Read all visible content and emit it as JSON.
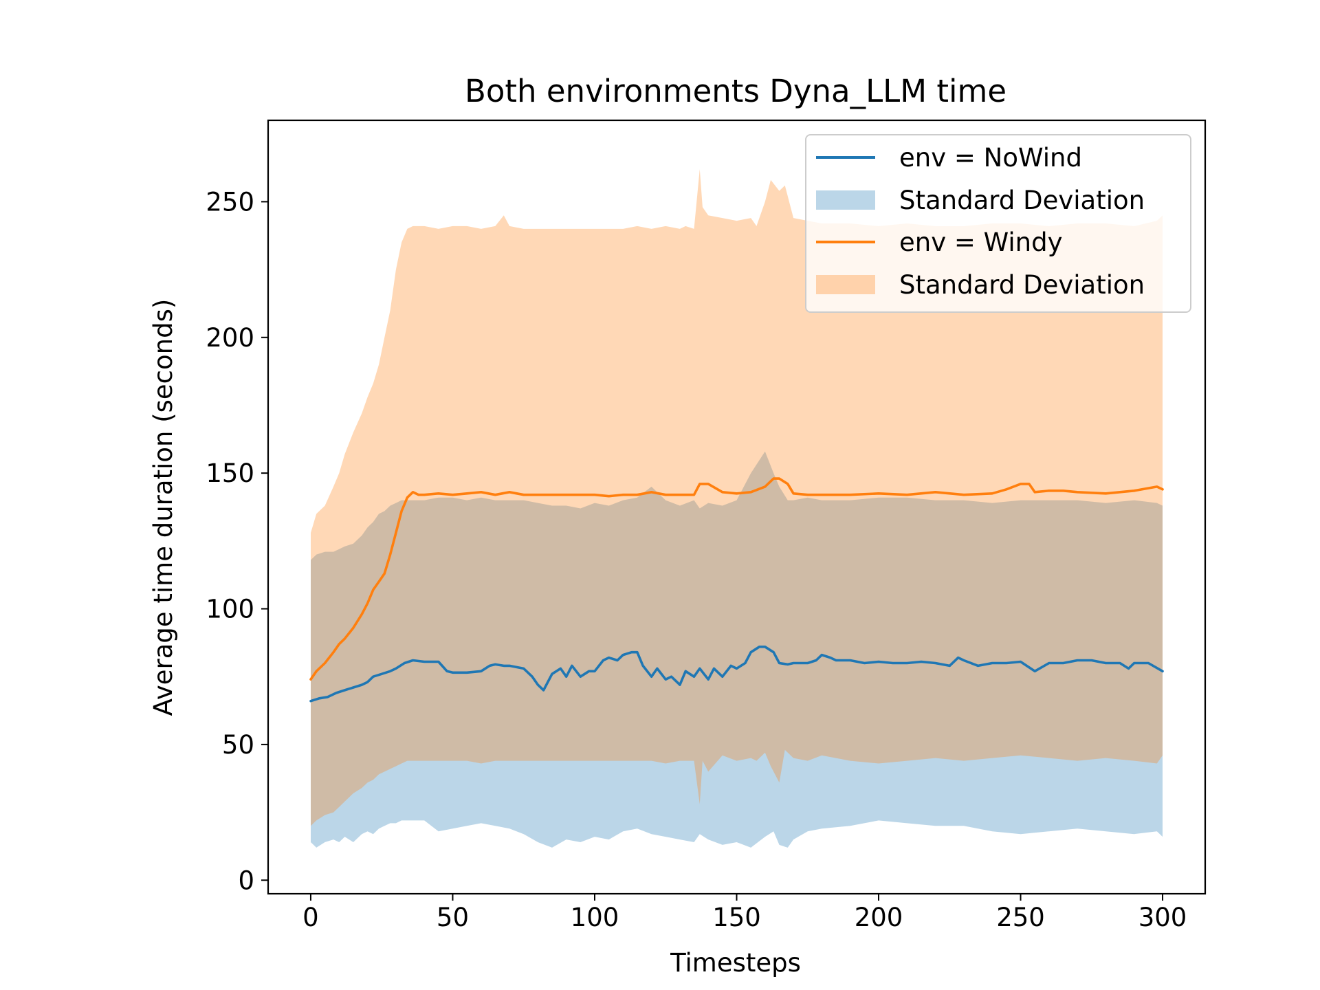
{
  "chart_data": {
    "type": "line",
    "title": "Both environments Dyna_LLM time",
    "xlabel": "Timesteps",
    "ylabel": "Average time duration (seconds)",
    "xlim": [
      -15,
      315
    ],
    "ylim": [
      -5,
      280
    ],
    "xticks": [
      0,
      50,
      100,
      150,
      200,
      250,
      300
    ],
    "yticks": [
      0,
      50,
      100,
      150,
      200,
      250
    ],
    "grid": false,
    "legend_position": "upper right",
    "series": [
      {
        "name": "env = NoWind",
        "color": "#1f77b4",
        "x": [
          0,
          3,
          6,
          9,
          12,
          15,
          18,
          20,
          22,
          25,
          28,
          30,
          33,
          36,
          40,
          45,
          48,
          50,
          55,
          60,
          63,
          65,
          68,
          70,
          75,
          78,
          80,
          82,
          85,
          88,
          90,
          92,
          95,
          98,
          100,
          103,
          105,
          108,
          110,
          113,
          115,
          117,
          120,
          122,
          125,
          127,
          130,
          132,
          135,
          137,
          140,
          142,
          145,
          148,
          150,
          153,
          155,
          158,
          160,
          163,
          165,
          168,
          170,
          175,
          178,
          180,
          183,
          185,
          190,
          195,
          200,
          205,
          210,
          215,
          220,
          225,
          228,
          230,
          235,
          240,
          245,
          250,
          255,
          260,
          265,
          270,
          275,
          280,
          285,
          288,
          290,
          295,
          300
        ],
        "values": [
          66,
          67,
          67.5,
          69,
          70,
          71,
          72,
          73,
          75,
          76,
          77,
          78,
          80,
          81,
          80.5,
          80.5,
          77,
          76.5,
          76.5,
          77,
          79,
          79.5,
          79,
          79,
          78,
          75,
          72,
          70,
          76,
          78,
          75,
          79,
          75,
          77,
          77,
          81,
          82,
          81,
          83,
          84,
          84,
          79,
          75,
          78,
          74,
          75,
          72,
          77,
          75,
          78,
          74,
          78,
          75,
          79,
          78,
          80,
          84,
          86,
          86,
          84,
          80,
          79.5,
          80,
          80,
          81,
          83,
          82,
          81,
          81,
          80,
          80.5,
          80,
          80,
          80.5,
          80,
          79,
          82,
          81,
          79,
          80,
          80,
          80.5,
          77,
          80,
          80,
          81,
          81,
          80,
          80,
          78,
          80,
          80,
          77
        ]
      },
      {
        "name": "env = Windy",
        "color": "#ff7f0e",
        "x": [
          0,
          2,
          5,
          8,
          10,
          12,
          15,
          18,
          20,
          22,
          24,
          26,
          28,
          30,
          32,
          34,
          36,
          38,
          40,
          45,
          50,
          55,
          60,
          65,
          70,
          75,
          80,
          90,
          100,
          105,
          110,
          115,
          120,
          125,
          130,
          135,
          137,
          140,
          145,
          150,
          155,
          160,
          163,
          165,
          168,
          170,
          175,
          180,
          190,
          200,
          210,
          220,
          230,
          240,
          245,
          250,
          253,
          255,
          260,
          265,
          270,
          280,
          290,
          298,
          300
        ],
        "values": [
          74,
          77,
          80,
          84,
          87,
          89,
          93,
          98,
          102,
          107,
          110,
          113,
          120,
          128,
          136,
          141,
          143,
          142,
          142,
          142.5,
          142,
          142.5,
          143,
          142,
          143,
          142,
          142,
          142,
          142,
          141.5,
          142,
          142,
          143,
          142,
          142,
          142,
          146,
          146,
          143,
          142.5,
          143,
          145,
          148,
          148,
          146,
          142.5,
          142,
          142,
          142,
          142.5,
          142,
          143,
          142,
          142.5,
          144,
          146,
          146,
          143,
          143.5,
          143.5,
          143,
          142.5,
          143.5,
          145,
          144
        ]
      }
    ],
    "bands": [
      {
        "name": "Standard Deviation",
        "color": "#1f77b4",
        "opacity": 0.3,
        "x": [
          0,
          2,
          5,
          8,
          10,
          12,
          15,
          18,
          20,
          22,
          24,
          26,
          28,
          30,
          32,
          34,
          36,
          38,
          40,
          45,
          50,
          55,
          60,
          65,
          70,
          75,
          80,
          85,
          90,
          95,
          100,
          105,
          110,
          115,
          120,
          125,
          130,
          135,
          137,
          140,
          145,
          150,
          155,
          160,
          163,
          165,
          168,
          170,
          175,
          180,
          190,
          200,
          210,
          220,
          230,
          240,
          250,
          260,
          270,
          280,
          290,
          298,
          300
        ],
        "upper": [
          118,
          120,
          121,
          121,
          122,
          123,
          124,
          127,
          130,
          132,
          135,
          136,
          138,
          139,
          140,
          140,
          140,
          140,
          140,
          141,
          141,
          140,
          141,
          140,
          140,
          140,
          139,
          138,
          138,
          137,
          139,
          138,
          140,
          141,
          145,
          140,
          138,
          140,
          137,
          139,
          138,
          140,
          150,
          158,
          150,
          145,
          140,
          140,
          141,
          140,
          140,
          141,
          141,
          140,
          140,
          139,
          140,
          140,
          140,
          139,
          140,
          139,
          138
        ],
        "lower": [
          14,
          12,
          14,
          15,
          14,
          16,
          14,
          17,
          18,
          17,
          19,
          20,
          21,
          21,
          22,
          22,
          22,
          22,
          22,
          18,
          19,
          20,
          21,
          20,
          19,
          17,
          14,
          12,
          15,
          14,
          16,
          15,
          18,
          19,
          17,
          16,
          15,
          14,
          17,
          15,
          13,
          14,
          12,
          16,
          18,
          13,
          12,
          15,
          18,
          19,
          20,
          22,
          21,
          20,
          20,
          18,
          17,
          18,
          19,
          18,
          17,
          18,
          16
        ]
      },
      {
        "name": "Standard Deviation",
        "color": "#ff7f0e",
        "opacity": 0.3,
        "x": [
          0,
          2,
          5,
          8,
          10,
          12,
          15,
          18,
          20,
          22,
          24,
          26,
          28,
          30,
          32,
          34,
          36,
          38,
          40,
          45,
          50,
          55,
          60,
          65,
          68,
          70,
          75,
          80,
          90,
          100,
          110,
          115,
          120,
          125,
          130,
          132,
          135,
          137,
          138,
          140,
          145,
          150,
          155,
          157,
          160,
          162,
          165,
          167,
          170,
          175,
          180,
          190,
          200,
          210,
          220,
          230,
          240,
          250,
          260,
          270,
          280,
          290,
          298,
          300
        ],
        "upper": [
          128,
          135,
          138,
          145,
          150,
          157,
          165,
          172,
          178,
          183,
          190,
          200,
          210,
          225,
          235,
          240,
          241,
          241,
          241,
          240,
          241,
          241,
          240,
          241,
          245,
          241,
          240,
          240,
          240,
          240,
          240,
          241,
          240,
          241,
          240,
          241,
          240,
          262,
          248,
          245,
          244,
          243,
          244,
          241,
          250,
          258,
          254,
          256,
          244,
          243,
          242,
          242,
          241,
          242,
          241,
          241,
          242,
          242,
          241,
          242,
          242,
          241,
          243,
          245
        ],
        "lower": [
          20,
          22,
          24,
          25,
          27,
          29,
          32,
          34,
          36,
          37,
          39,
          40,
          41,
          42,
          43,
          44,
          44,
          44,
          44,
          44,
          44,
          44,
          43,
          44,
          44,
          44,
          44,
          44,
          44,
          44,
          44,
          44,
          44,
          43,
          44,
          44,
          44,
          28,
          44,
          40,
          46,
          44,
          45,
          44,
          47,
          42,
          36,
          48,
          45,
          44,
          46,
          44,
          43,
          44,
          45,
          44,
          45,
          46,
          45,
          44,
          45,
          44,
          43,
          46
        ]
      }
    ],
    "legend": [
      {
        "label": "env = NoWind",
        "kind": "line",
        "color": "#1f77b4"
      },
      {
        "label": "Standard Deviation",
        "kind": "patch",
        "color": "#1f77b4"
      },
      {
        "label": "env = Windy",
        "kind": "line",
        "color": "#ff7f0e"
      },
      {
        "label": "Standard Deviation",
        "kind": "patch",
        "color": "#ff7f0e"
      }
    ]
  }
}
